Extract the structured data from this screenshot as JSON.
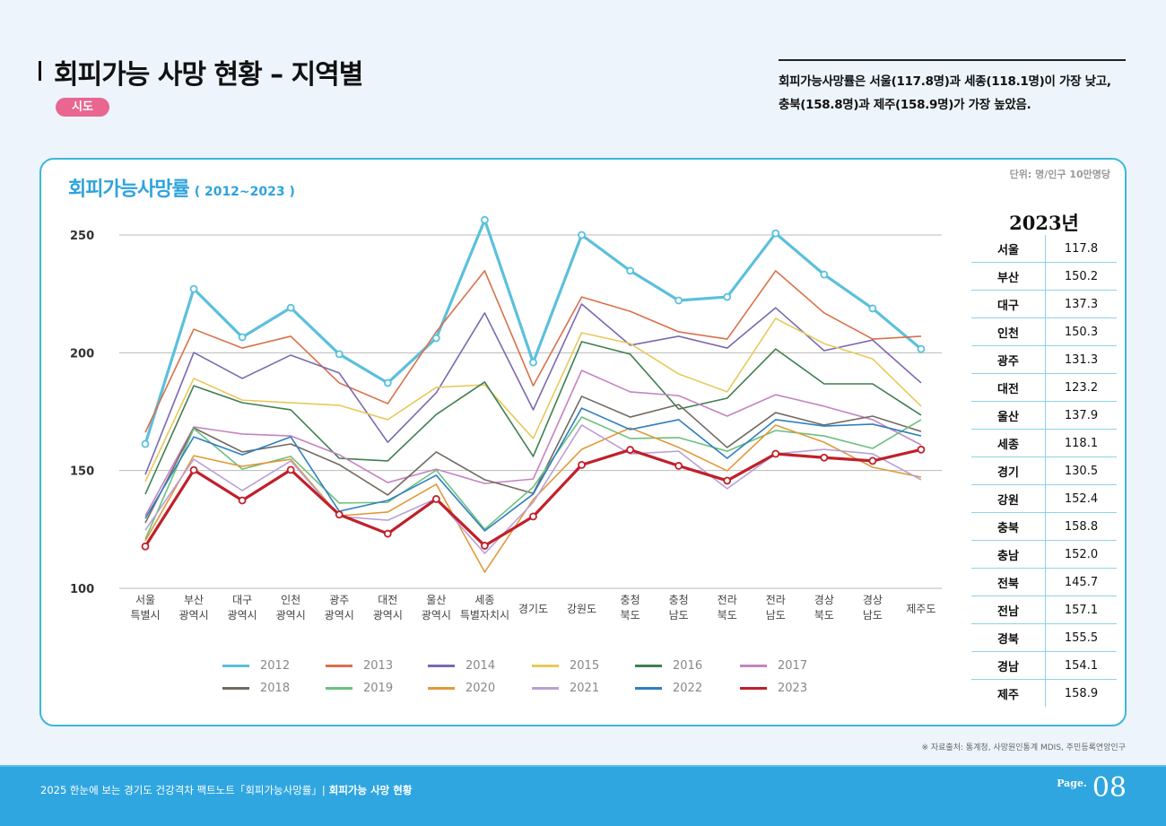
{
  "header": {
    "title": "회피가능 사망 현황 – 지역별",
    "tag": "시도",
    "summary_line1": "회피가능사망률은 서울(117.8명)과 세종(118.1명)이 가장 낮고,",
    "summary_line2": "충북(158.8명)과 제주(158.9명)가 가장 높았음."
  },
  "card": {
    "title": "회피가능사망률",
    "title_sub": "( 2012~2023 )",
    "unit": "단위: 명/인구 10만명당"
  },
  "table": {
    "heading": "2023년",
    "rows": [
      {
        "region": "서울",
        "value": "117.8"
      },
      {
        "region": "부산",
        "value": "150.2"
      },
      {
        "region": "대구",
        "value": "137.3"
      },
      {
        "region": "인천",
        "value": "150.3"
      },
      {
        "region": "광주",
        "value": "131.3"
      },
      {
        "region": "대전",
        "value": "123.2"
      },
      {
        "region": "울산",
        "value": "137.9"
      },
      {
        "region": "세종",
        "value": "118.1"
      },
      {
        "region": "경기",
        "value": "130.5"
      },
      {
        "region": "강원",
        "value": "152.4"
      },
      {
        "region": "충북",
        "value": "158.8"
      },
      {
        "region": "충남",
        "value": "152.0"
      },
      {
        "region": "전북",
        "value": "145.7"
      },
      {
        "region": "전남",
        "value": "157.1"
      },
      {
        "region": "경북",
        "value": "155.5"
      },
      {
        "region": "경남",
        "value": "154.1"
      },
      {
        "region": "제주",
        "value": "158.9"
      }
    ]
  },
  "chart_data": {
    "type": "line",
    "title": "회피가능사망률 ( 2012~2023 )",
    "ylim": [
      100,
      250
    ],
    "yticks": [
      100,
      150,
      200,
      250
    ],
    "grid": true,
    "legend": "bottom",
    "categories": [
      [
        "서울",
        "특별시"
      ],
      [
        "부산",
        "광역시"
      ],
      [
        "대구",
        "광역시"
      ],
      [
        "인천",
        "광역시"
      ],
      [
        "광주",
        "광역시"
      ],
      [
        "대전",
        "광역시"
      ],
      [
        "울산",
        "광역시"
      ],
      [
        "세종",
        "특별자치시"
      ],
      [
        "경기도"
      ],
      [
        "강원도"
      ],
      [
        "충청",
        "북도"
      ],
      [
        "충청",
        "남도"
      ],
      [
        "전라",
        "북도"
      ],
      [
        "전라",
        "남도"
      ],
      [
        "경상",
        "북도"
      ],
      [
        "경상",
        "남도"
      ],
      [
        "제주도"
      ]
    ],
    "series": [
      {
        "name": "2012",
        "color": "#5bc0dc",
        "markers": true,
        "values": [
          161.3,
          227.1,
          206.6,
          219.1,
          199.4,
          187.2,
          206.2,
          256.4,
          195.9,
          250.0,
          234.8,
          222.2,
          223.7,
          250.7,
          233.2,
          218.8,
          201.6
        ]
      },
      {
        "name": "2013",
        "color": "#d9704a",
        "values": [
          166.2,
          210.0,
          202.0,
          207.0,
          187.2,
          178.4,
          208.9,
          234.8,
          186.0,
          223.7,
          217.6,
          208.9,
          205.8,
          234.8,
          216.9,
          205.8,
          207.0
        ]
      },
      {
        "name": "2014",
        "color": "#7b68b0",
        "values": [
          148.3,
          200.1,
          189.1,
          199.0,
          191.4,
          162.0,
          183.0,
          216.9,
          175.8,
          220.7,
          203.2,
          207.0,
          202.0,
          219.1,
          200.9,
          205.4,
          187.2
        ]
      },
      {
        "name": "2015",
        "color": "#e8c95a",
        "values": [
          145.3,
          189.1,
          179.9,
          178.8,
          177.7,
          171.6,
          185.3,
          186.4,
          163.6,
          208.5,
          203.9,
          191.0,
          183.4,
          214.6,
          203.9,
          197.4,
          177.3
        ]
      },
      {
        "name": "2016",
        "color": "#3f7f4f",
        "values": [
          140.0,
          186.0,
          178.8,
          175.8,
          155.2,
          154.1,
          173.8,
          187.6,
          156.0,
          204.7,
          199.4,
          176.1,
          180.7,
          201.6,
          186.8,
          186.8,
          173.5
        ]
      },
      {
        "name": "2017",
        "color": "#c484c0",
        "values": [
          130.8,
          168.5,
          165.5,
          164.7,
          156.7,
          144.9,
          150.6,
          144.5,
          146.4,
          192.5,
          183.4,
          181.8,
          173.1,
          182.2,
          177.3,
          171.6,
          160.9
        ]
      },
      {
        "name": "2018",
        "color": "#736a62",
        "values": [
          127.8,
          168.1,
          157.9,
          161.3,
          152.5,
          139.6,
          157.9,
          146.1,
          140.3,
          181.5,
          172.7,
          178.0,
          159.8,
          174.6,
          169.3,
          173.1,
          166.6
        ]
      },
      {
        "name": "2019",
        "color": "#6cc07c",
        "values": [
          120.9,
          167.8,
          150.6,
          156.0,
          136.2,
          136.5,
          150.2,
          125.1,
          143.0,
          172.7,
          163.6,
          164.0,
          158.2,
          167.0,
          164.7,
          159.4,
          171.6
        ]
      },
      {
        "name": "2020",
        "color": "#e09a3a",
        "values": [
          120.2,
          156.3,
          151.8,
          154.8,
          130.8,
          132.4,
          144.2,
          106.9,
          137.7,
          159.0,
          168.1,
          159.8,
          149.9,
          169.3,
          162.0,
          151.4,
          147.2
        ]
      },
      {
        "name": "2021",
        "color": "#b9a0d6",
        "values": [
          124.7,
          154.8,
          141.5,
          154.1,
          130.5,
          128.9,
          138.1,
          114.8,
          136.5,
          169.3,
          157.1,
          158.2,
          142.3,
          157.1,
          159.0,
          157.1,
          146.1
        ]
      },
      {
        "name": "2022",
        "color": "#2f7fc0",
        "values": [
          129.7,
          164.3,
          156.7,
          164.3,
          132.7,
          137.3,
          148.0,
          124.4,
          140.0,
          176.5,
          167.4,
          171.6,
          155.2,
          171.6,
          168.9,
          169.7,
          164.7
        ]
      },
      {
        "name": "2023",
        "color": "#c0202a",
        "markers": true,
        "values": [
          117.8,
          150.2,
          137.3,
          150.3,
          131.3,
          123.2,
          137.9,
          118.1,
          130.5,
          152.4,
          158.8,
          152.0,
          145.7,
          157.1,
          155.5,
          154.1,
          158.9
        ]
      }
    ]
  },
  "source": "※ 자료출처: 통계청, 사망원인통계 MDIS, 주민등록연앙인구",
  "footer": {
    "text": "2025 한눈에 보는 경기도 건강격차 팩트노트「회피가능사망률」|",
    "section": "회피가능 사망 현황",
    "page_label": "Page.",
    "page_number": "08"
  }
}
